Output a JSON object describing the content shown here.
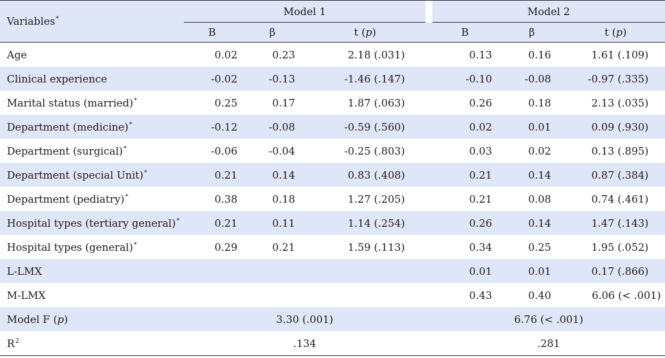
{
  "table": {
    "variables_header": "Variables",
    "variables_header_mark": "*",
    "model1_header": "Model 1",
    "model2_header": "Model 2",
    "sub_b": "B",
    "sub_beta": "β",
    "sub_t_prefix": "t (",
    "sub_t_p": "p",
    "sub_t_suffix": ")",
    "rows": [
      {
        "label": "Age",
        "mark": "",
        "m1": [
          "0.02",
          "0.23",
          "2.18 (.031)"
        ],
        "m2": [
          "0.13",
          "0.16",
          "1.61 (.109)"
        ]
      },
      {
        "label": "Clinical experience",
        "mark": "",
        "m1": [
          "-0.02",
          "-0.13",
          "-1.46 (.147)"
        ],
        "m2": [
          "-0.10",
          "-0.08",
          "-0.97 (.335)"
        ]
      },
      {
        "label": "Marital status (married)",
        "mark": "*",
        "m1": [
          "0.25",
          "0.17",
          "1.87 (.063)"
        ],
        "m2": [
          "0.26",
          "0.18",
          "2.13 (.035)"
        ]
      },
      {
        "label": "Department (medicine)",
        "mark": "*",
        "m1": [
          "-0.12",
          "-0.08",
          "-0.59 (.560)"
        ],
        "m2": [
          "0.02",
          "0.01",
          "0.09 (.930)"
        ]
      },
      {
        "label": "Department (surgical)",
        "mark": "*",
        "m1": [
          "-0.06",
          "-0.04",
          "-0.25 (.803)"
        ],
        "m2": [
          "0.03",
          "0.02",
          "0.13 (.895)"
        ]
      },
      {
        "label": "Department (special Unit)",
        "mark": "*",
        "m1": [
          "0.21",
          "0.14",
          "0.83 (.408)"
        ],
        "m2": [
          "0.21",
          "0.14",
          "0.87 (.384)"
        ]
      },
      {
        "label": "Department (pediatry)",
        "mark": "*",
        "m1": [
          "0.38",
          "0.18",
          "1.27 (.205)"
        ],
        "m2": [
          "0.21",
          "0.08",
          "0.74 (.461)"
        ]
      },
      {
        "label": "Hospital types (tertiary general)",
        "mark": "*",
        "m1": [
          "0.21",
          "0.11",
          "1.14 (.254)"
        ],
        "m2": [
          "0.26",
          "0.14",
          "1.47 (.143)"
        ]
      },
      {
        "label": "Hospital types (general)",
        "mark": "*",
        "m1": [
          "0.29",
          "0.21",
          "1.59 (.113)"
        ],
        "m2": [
          "0.34",
          "0.25",
          "1.95 (.052)"
        ]
      },
      {
        "label": "L-LMX",
        "mark": "",
        "m1": [
          "",
          "",
          ""
        ],
        "m2": [
          "0.01",
          "0.01",
          "0.17 (.866)"
        ]
      },
      {
        "label": "M-LMX",
        "mark": "",
        "m1": [
          "",
          "",
          ""
        ],
        "m2": [
          "0.43",
          "0.40",
          "6.06 (< .001)"
        ]
      }
    ],
    "modelF": {
      "label_prefix": "Model F (",
      "label_p": "p",
      "label_suffix": ")",
      "m1": "3.30 (.001)",
      "m2": "6.76 (< .001)"
    },
    "r2": {
      "label": "R",
      "label_sup": "2",
      "m1": ".134",
      "m2": ".281"
    }
  }
}
